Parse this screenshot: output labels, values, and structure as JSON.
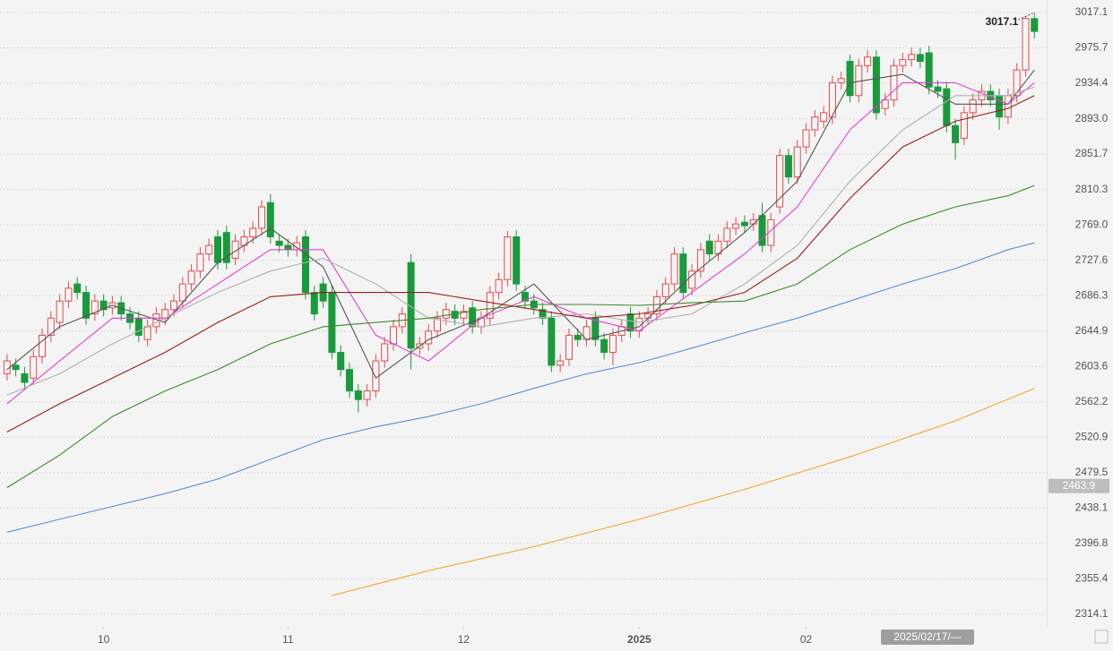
{
  "chart_data": {
    "type": "candlestick",
    "up_color": "#e34a4e",
    "down_color": "#199a3c",
    "grid": true,
    "xlim": [
      -0.8,
      118.4
    ],
    "ylim": [
      2299.4,
      3031.7
    ],
    "yticks": [
      3017.1,
      2975.7,
      2934.4,
      {
        "value": 2893.0,
        "label": "2893.0"
      },
      2851.7,
      2810.3,
      {
        "value": 2769.0,
        "label": "2769.0"
      },
      2727.6,
      2686.3,
      2644.9,
      2603.6,
      2562.2,
      2520.9,
      2479.5,
      2438.1,
      2396.8,
      2355.4,
      2314.1
    ],
    "xticks": [
      {
        "value": 11,
        "label": "10"
      },
      {
        "value": 32,
        "label": "11"
      },
      {
        "value": 52,
        "label": "12"
      },
      {
        "value": 72,
        "label": "2025"
      },
      {
        "value": 91,
        "label": "02"
      }
    ],
    "open": [
      2595,
      2605,
      2595,
      2590,
      2615,
      2640,
      2655,
      2680,
      2700,
      2690,
      2665,
      2680,
      2672,
      2678,
      2665,
      2660,
      2635,
      2650,
      2660,
      2670,
      2680,
      2700,
      2715,
      2735,
      2755,
      2760,
      2730,
      2745,
      2755,
      2765,
      2795,
      2750,
      2745,
      2740,
      2755,
      2690,
      2700,
      2690,
      2620,
      2600,
      2575,
      2565,
      2575,
      2610,
      2630,
      2650,
      2725,
      2625,
      2630,
      2645,
      2660,
      2668,
      2660,
      2672,
      2650,
      2660,
      2690,
      2705,
      2755,
      2690,
      2680,
      2670,
      2660,
      2605,
      2612,
      2640,
      2635,
      2660,
      2635,
      2620,
      2640,
      2665,
      2645,
      2660,
      2665,
      2685,
      2700,
      2735,
      2695,
      2715,
      2750,
      2735,
      2750,
      2765,
      2772,
      2770,
      2780,
      2745,
      2790,
      2850,
      2825,
      2860,
      2880,
      2890,
      2895,
      2935,
      2960,
      2920,
      2955,
      2965,
      2905,
      2915,
      2955,
      2962,
      2968,
      2970,
      2930,
      2928,
      2885,
      2870,
      2900,
      2915,
      2925,
      2920,
      2895,
      2920,
      2950,
      3010
    ],
    "high": [
      2618,
      2613,
      2603,
      2623,
      2648,
      2668,
      2688,
      2703,
      2708,
      2698,
      2688,
      2688,
      2686,
      2686,
      2673,
      2668,
      2658,
      2673,
      2678,
      2688,
      2708,
      2723,
      2743,
      2753,
      2763,
      2768,
      2758,
      2763,
      2773,
      2798,
      2805,
      2758,
      2753,
      2756,
      2763,
      2698,
      2708,
      2698,
      2628,
      2608,
      2583,
      2583,
      2618,
      2638,
      2658,
      2673,
      2735,
      2638,
      2653,
      2668,
      2678,
      2676,
      2676,
      2680,
      2668,
      2698,
      2713,
      2762,
      2763,
      2698,
      2688,
      2678,
      2668,
      2618,
      2648,
      2648,
      2658,
      2668,
      2643,
      2648,
      2658,
      2673,
      2668,
      2673,
      2693,
      2708,
      2743,
      2743,
      2723,
      2748,
      2758,
      2758,
      2773,
      2778,
      2780,
      2783,
      2795,
      2783,
      2858,
      2858,
      2868,
      2888,
      2903,
      2908,
      2943,
      2948,
      2968,
      2963,
      2973,
      2973,
      2923,
      2963,
      2970,
      2976,
      2976,
      2978,
      2938,
      2936,
      2893,
      2908,
      2923,
      2933,
      2933,
      2928,
      2928,
      2958,
      3012,
      3017.1
    ],
    "low": [
      2587,
      2592,
      2577,
      2582,
      2607,
      2632,
      2647,
      2672,
      2682,
      2652,
      2657,
      2662,
      2664,
      2657,
      2647,
      2632,
      2627,
      2642,
      2652,
      2662,
      2672,
      2692,
      2707,
      2727,
      2717,
      2717,
      2722,
      2737,
      2747,
      2757,
      2747,
      2737,
      2732,
      2732,
      2682,
      2657,
      2672,
      2612,
      2592,
      2567,
      2550,
      2557,
      2567,
      2602,
      2622,
      2642,
      2600,
      2617,
      2622,
      2637,
      2652,
      2652,
      2652,
      2642,
      2642,
      2652,
      2682,
      2697,
      2692,
      2672,
      2664,
      2652,
      2597,
      2597,
      2604,
      2627,
      2627,
      2627,
      2612,
      2605,
      2632,
      2637,
      2637,
      2652,
      2657,
      2677,
      2692,
      2682,
      2687,
      2707,
      2727,
      2727,
      2742,
      2757,
      2760,
      2762,
      2737,
      2737,
      2782,
      2817,
      2817,
      2852,
      2872,
      2882,
      2887,
      2927,
      2912,
      2912,
      2947,
      2892,
      2897,
      2907,
      2947,
      2954,
      2952,
      2922,
      2917,
      2877,
      2845,
      2862,
      2892,
      2907,
      2907,
      2880,
      2887,
      2912,
      2942,
      2987
    ],
    "close": [
      2610,
      2600,
      2585,
      2615,
      2640,
      2660,
      2680,
      2695,
      2690,
      2660,
      2680,
      2670,
      2678,
      2665,
      2655,
      2640,
      2650,
      2665,
      2670,
      2680,
      2700,
      2715,
      2735,
      2745,
      2725,
      2725,
      2750,
      2755,
      2765,
      2790,
      2755,
      2745,
      2740,
      2748,
      2690,
      2665,
      2680,
      2620,
      2600,
      2575,
      2565,
      2575,
      2610,
      2630,
      2650,
      2665,
      2625,
      2630,
      2645,
      2660,
      2670,
      2660,
      2668,
      2650,
      2660,
      2690,
      2705,
      2755,
      2700,
      2680,
      2672,
      2660,
      2605,
      2610,
      2640,
      2635,
      2650,
      2635,
      2620,
      2640,
      2650,
      2645,
      2660,
      2665,
      2685,
      2700,
      2735,
      2690,
      2715,
      2740,
      2735,
      2750,
      2765,
      2770,
      2768,
      2775,
      2745,
      2775,
      2850,
      2825,
      2860,
      2880,
      2895,
      2900,
      2935,
      2940,
      2920,
      2955,
      2965,
      2900,
      2915,
      2955,
      2962,
      2968,
      2960,
      2930,
      2925,
      2885,
      2865,
      2900,
      2915,
      2925,
      2915,
      2895,
      2920,
      2950,
      3010,
      2995
    ],
    "lines": [
      {
        "color": "#555555",
        "x": [
          0,
          6,
          12,
          18,
          24,
          30,
          36,
          42,
          48,
          54,
          60,
          66,
          72,
          78,
          84,
          90,
          96,
          102,
          108,
          114,
          117
        ],
        "values": [
          2600,
          2650,
          2675,
          2655,
          2725,
          2765,
          2720,
          2590,
          2635,
          2660,
          2700,
          2635,
          2650,
          2710,
          2760,
          2820,
          2935,
          2945,
          2910,
          2910,
          2950
        ]
      },
      {
        "color": "#e040d0",
        "x": [
          0,
          6,
          12,
          18,
          24,
          30,
          36,
          42,
          48,
          54,
          60,
          66,
          72,
          78,
          84,
          90,
          96,
          102,
          108,
          114,
          117
        ],
        "values": [
          2560,
          2610,
          2660,
          2660,
          2700,
          2740,
          2740,
          2640,
          2610,
          2660,
          2685,
          2660,
          2645,
          2690,
          2735,
          2790,
          2880,
          2935,
          2935,
          2910,
          2935
        ]
      },
      {
        "color": "#b0b0b0",
        "x": [
          0,
          6,
          12,
          18,
          24,
          30,
          36,
          42,
          48,
          54,
          60,
          66,
          72,
          78,
          84,
          90,
          96,
          102,
          108,
          114,
          117
        ],
        "values": [
          2570,
          2595,
          2630,
          2660,
          2690,
          2715,
          2730,
          2700,
          2660,
          2650,
          2660,
          2665,
          2655,
          2665,
          2700,
          2745,
          2820,
          2880,
          2920,
          2920,
          2930
        ]
      },
      {
        "color": "#9b1c1c",
        "x": [
          0,
          6,
          12,
          18,
          24,
          30,
          36,
          42,
          48,
          54,
          60,
          66,
          72,
          78,
          84,
          90,
          96,
          102,
          108,
          114,
          117
        ],
        "values": [
          2527,
          2560,
          2590,
          2620,
          2655,
          2685,
          2690,
          2690,
          2690,
          2680,
          2670,
          2660,
          2665,
          2675,
          2690,
          2730,
          2800,
          2860,
          2890,
          2905,
          2920
        ]
      },
      {
        "color": "#3d8a2a",
        "x": [
          0,
          6,
          12,
          18,
          24,
          30,
          36,
          42,
          48,
          54,
          60,
          66,
          72,
          78,
          84,
          90,
          96,
          102,
          108,
          114,
          117
        ],
        "values": [
          2462,
          2500,
          2545,
          2575,
          2600,
          2630,
          2650,
          2655,
          2660,
          2670,
          2676,
          2676,
          2675,
          2678,
          2680,
          2700,
          2740,
          2770,
          2790,
          2803,
          2815
        ]
      },
      {
        "color": "#5b8fd6",
        "x": [
          0,
          6,
          12,
          18,
          24,
          30,
          36,
          42,
          48,
          54,
          60,
          66,
          72,
          78,
          84,
          90,
          96,
          102,
          108,
          114,
          117
        ],
        "values": [
          2410,
          2425,
          2440,
          2455,
          2472,
          2495,
          2518,
          2533,
          2545,
          2560,
          2578,
          2595,
          2608,
          2625,
          2643,
          2660,
          2680,
          2700,
          2718,
          2740,
          2748
        ]
      },
      {
        "color": "#f0a830",
        "x": [
          37,
          48,
          60,
          72,
          84,
          96,
          108,
          117
        ],
        "values": [
          2336,
          2365,
          2393,
          2425,
          2460,
          2498,
          2540,
          2578
        ]
      }
    ],
    "max_label": 3017.1,
    "price_label": 2463.9,
    "date_label": "2025/02/17/—"
  }
}
